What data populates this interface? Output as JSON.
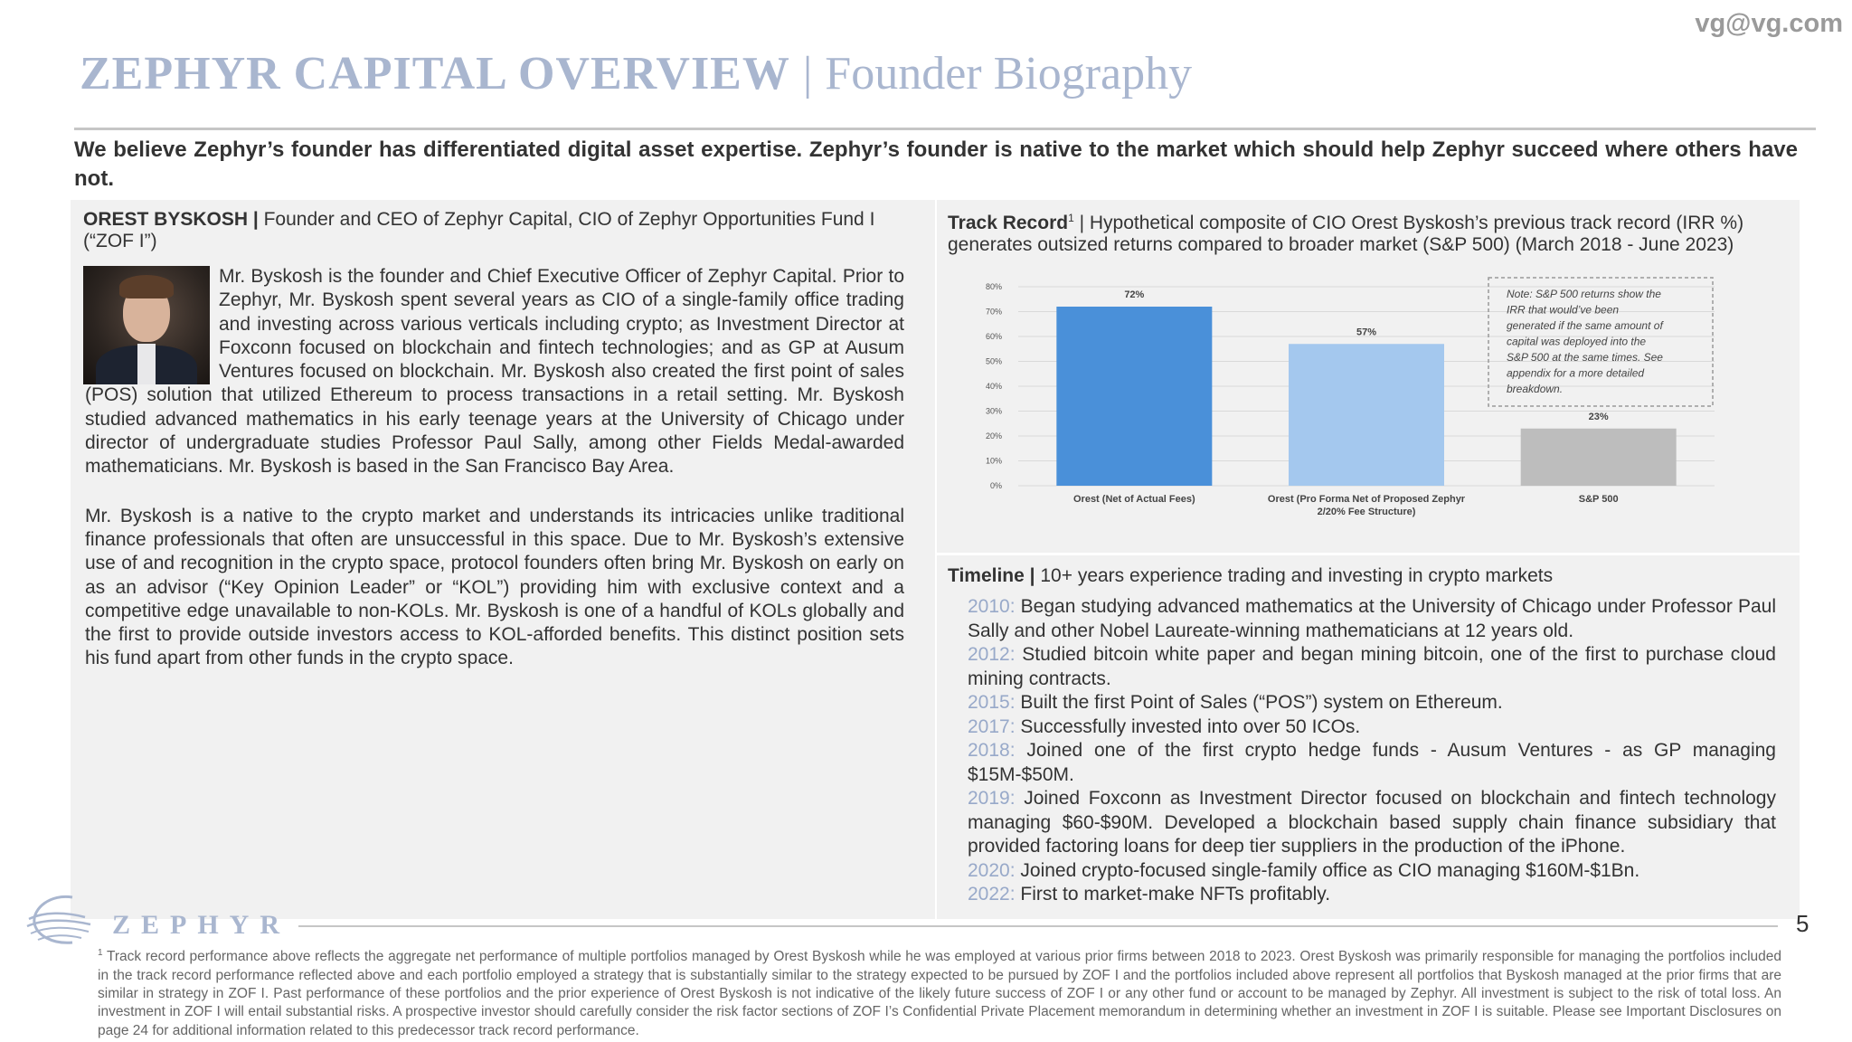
{
  "header": {
    "email": "vg@vg.com",
    "title_main": "ZEPHYR CAPITAL OVERVIEW",
    "title_sep": "|",
    "title_sub": "Founder Biography"
  },
  "lede": "We believe Zephyr’s founder has differentiated digital asset expertise. Zephyr’s founder is native to the market which should help Zephyr succeed where others have not.",
  "bio": {
    "name": "OREST BYSKOSH |",
    "role": " Founder and CEO of Zephyr Capital, CIO of Zephyr Opportunities Fund I (“ZOF I”)",
    "paragraphs": [
      "Mr. Byskosh is the founder and Chief Executive Officer of Zephyr Capital. Prior to Zephyr, Mr. Byskosh spent several years as CIO of a single-family office trading and investing across various verticals including crypto; as Investment Director at Foxconn focused on blockchain and fintech technologies; and as GP at Ausum Ventures focused on blockchain. Mr. Byskosh also created the first point of sales (POS) solution that utilized Ethereum to process transactions in a retail setting. Mr. Byskosh studied advanced mathematics in his early teenage years at the University of Chicago under director of undergraduate studies Professor Paul Sally, among other Fields Medal-awarded mathematicians. Mr. Byskosh is based in the San Francisco Bay Area.",
      "Mr. Byskosh is a native to the crypto market and understands its intricacies unlike traditional finance professionals that often are unsuccessful in this space. Due to Mr. Byskosh’s extensive use of and recognition in the crypto space, protocol founders often bring Mr. Byskosh on early on as an advisor (“Key Opinion Leader” or “KOL”) providing him with exclusive context and a competitive edge unavailable to non-KOLs. Mr. Byskosh is one of a handful of KOLs globally and the first to provide outside investors access to KOL-afforded benefits. This distinct position sets his fund apart from other funds in the crypto space."
    ]
  },
  "track_record": {
    "label": "Track Record",
    "sup": "1",
    "desc": " | Hypothetical composite of CIO Orest Byskosh’s previous track record (IRR %) generates outsized returns compared to broader market (S&P 500) (March 2018 - June 2023)"
  },
  "chart_data": {
    "type": "bar",
    "categories": [
      "Orest (Net of Actual Fees)",
      "Orest (Pro Forma Net of Proposed Zephyr 2/20% Fee Structure)",
      "S&P 500"
    ],
    "category_lines": [
      [
        "Orest (Net of Actual Fees)"
      ],
      [
        "Orest (Pro Forma Net of Proposed Zephyr",
        "2/20% Fee Structure)"
      ],
      [
        "S&P 500"
      ]
    ],
    "values": [
      72,
      57,
      23
    ],
    "data_labels": [
      "72%",
      "57%",
      "23%"
    ],
    "bar_colors": [
      "#4a90d9",
      "#a4c8ee",
      "#bdbdbd"
    ],
    "ylim": [
      0,
      80
    ],
    "yticks": [
      0,
      10,
      20,
      30,
      40,
      50,
      60,
      70,
      80
    ],
    "ytick_labels": [
      "0%",
      "10%",
      "20%",
      "30%",
      "40%",
      "50%",
      "60%",
      "70%",
      "80%"
    ],
    "grid": true,
    "note_lines": [
      "Note: S&P 500 returns show the",
      "IRR that would’ve been",
      "generated if the same amount of",
      "capital was deployed into the",
      "S&P 500 at the same times. See",
      "appendix for a more detailed",
      "breakdown."
    ],
    "note_position": "top-right"
  },
  "timeline": {
    "label": "Timeline |",
    "desc": " 10+ years experience trading and investing in crypto markets",
    "items": [
      {
        "year": "2010:",
        "text": " Began studying advanced mathematics at the University of Chicago under Professor Paul Sally and other Nobel Laureate-winning mathematicians at 12 years old."
      },
      {
        "year": "2012:",
        "text": " Studied bitcoin white paper and began mining bitcoin, one of the first to purchase cloud mining contracts."
      },
      {
        "year": "2015:",
        "text": " Built the first Point of Sales (“POS”) system on Ethereum."
      },
      {
        "year": "2017:",
        "text": " Successfully invested into over 50 ICOs."
      },
      {
        "year": "2018:",
        "text": " Joined one of the first crypto hedge funds - Ausum Ventures - as GP managing $15M-$50M."
      },
      {
        "year": "2019:",
        "text": " Joined Foxconn as Investment Director focused on blockchain and fintech technology managing $60-$90M. Developed a blockchain based supply chain finance subsidiary that provided factoring loans for deep tier suppliers in the production of the iPhone."
      },
      {
        "year": "2020:",
        "text": " Joined crypto-focused single-family office as CIO managing $160M-$1Bn."
      },
      {
        "year": "2022:",
        "text": " First to market-make NFTs profitably."
      }
    ]
  },
  "footer": {
    "logo_text": "ZEPHYR",
    "page_number": "5",
    "footnote_sup": "1",
    "footnote": " Track record performance above reflects the aggregate net performance of multiple portfolios managed by Orest Byskosh while he was employed at various prior firms between 2018 to 2023. Orest Byskosh was primarily responsible for managing the portfolios included in the track record performance reflected above and each portfolio employed a strategy that is substantially similar to the strategy expected to be pursued by ZOF I and the portfolios included above represent all portfolios that Byskosh managed at the prior firms that are similar in strategy in ZOF I. Past performance of these portfolios and the prior experience of Orest Byskosh is not indicative of the likely future success of ZOF I or any other fund or account to be managed by Zephyr. All investment is subject to the risk of total loss. An investment in ZOF I will entail substantial risks. A prospective investor should carefully consider the risk factor sections of ZOF I’s Confidential Private Placement memorandum in determining whether an investment in ZOF I is suitable. Please see Important Disclosures on page 24 for additional information related to this predecessor track record performance."
  }
}
